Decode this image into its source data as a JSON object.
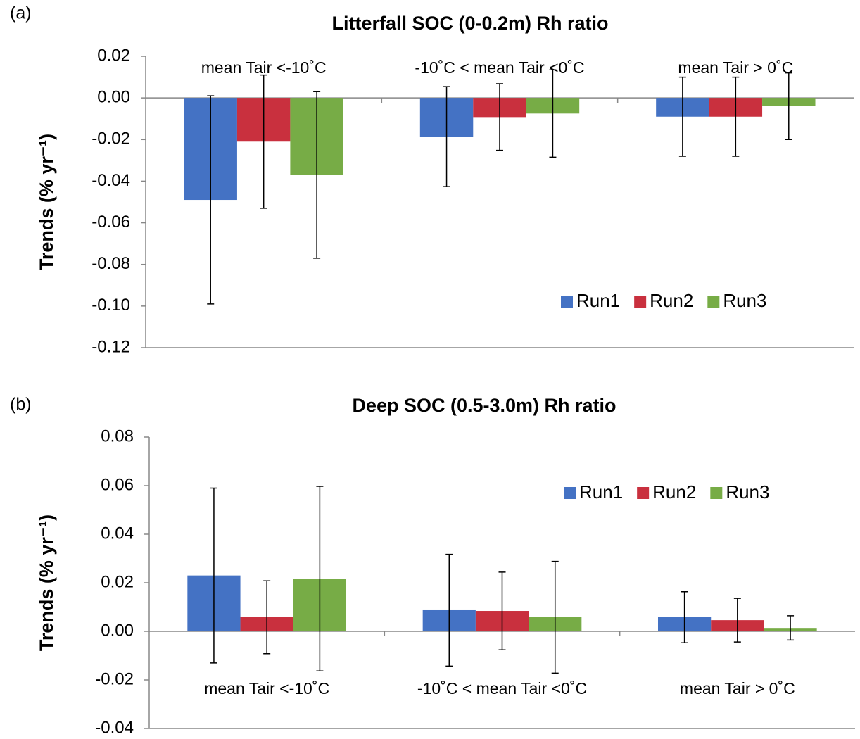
{
  "chart_data": [
    {
      "type": "bar",
      "panel_label": "(a)",
      "title": "Litterfall SOC (0-0.2m) Rh ratio",
      "y_label": "Trends (% yr⁻¹)",
      "categories": [
        "mean Tair <-10˚C",
        "-10˚C < mean Tair <0˚C",
        "mean Tair > 0˚C"
      ],
      "series": [
        {
          "name": "Run1",
          "color": "#4472c4",
          "values": [
            -0.049,
            -0.0186,
            -0.009
          ],
          "errors": [
            0.05,
            0.024,
            0.019
          ]
        },
        {
          "name": "Run2",
          "color": "#c9303e",
          "values": [
            -0.021,
            -0.0092,
            -0.009
          ],
          "errors": [
            0.032,
            0.016,
            0.019
          ]
        },
        {
          "name": "Run3",
          "color": "#77ac46",
          "values": [
            -0.037,
            -0.0075,
            -0.004
          ],
          "errors": [
            0.04,
            0.021,
            0.016
          ]
        }
      ],
      "ylim": [
        -0.12,
        0.02
      ],
      "yticks": [
        0.02,
        {
          "value": 0,
          "label": "0.00"
        },
        -0.02,
        -0.04,
        -0.06,
        -0.08,
        {
          "value": -0.1,
          "label": "-0.10"
        },
        -0.12
      ],
      "legend": "lower right"
    },
    {
      "type": "bar",
      "panel_label": "(b)",
      "title": "Deep SOC (0.5-3.0m) Rh ratio",
      "y_label": "Trends (% yr⁻¹)",
      "categories": [
        "mean Tair <-10˚C",
        "-10˚C < mean Tair <0˚C",
        "mean Tair > 0˚C"
      ],
      "series": [
        {
          "name": "Run1",
          "color": "#4472c4",
          "values": [
            0.023,
            0.0087,
            0.0058
          ],
          "errors": [
            0.036,
            0.023,
            0.0105
          ]
        },
        {
          "name": "Run2",
          "color": "#c9303e",
          "values": [
            0.0058,
            0.0084,
            0.0046
          ],
          "errors": [
            0.015,
            0.016,
            0.009
          ]
        },
        {
          "name": "Run3",
          "color": "#77ac46",
          "values": [
            0.0217,
            0.0058,
            0.0014
          ],
          "errors": [
            0.038,
            0.023,
            0.005
          ]
        }
      ],
      "ylim": [
        -0.04,
        0.08
      ],
      "yticks": [
        0.08,
        0.06,
        0.04,
        0.02,
        {
          "value": 0,
          "label": "0.00"
        },
        -0.02,
        -0.04
      ],
      "legend": "upper right"
    }
  ]
}
